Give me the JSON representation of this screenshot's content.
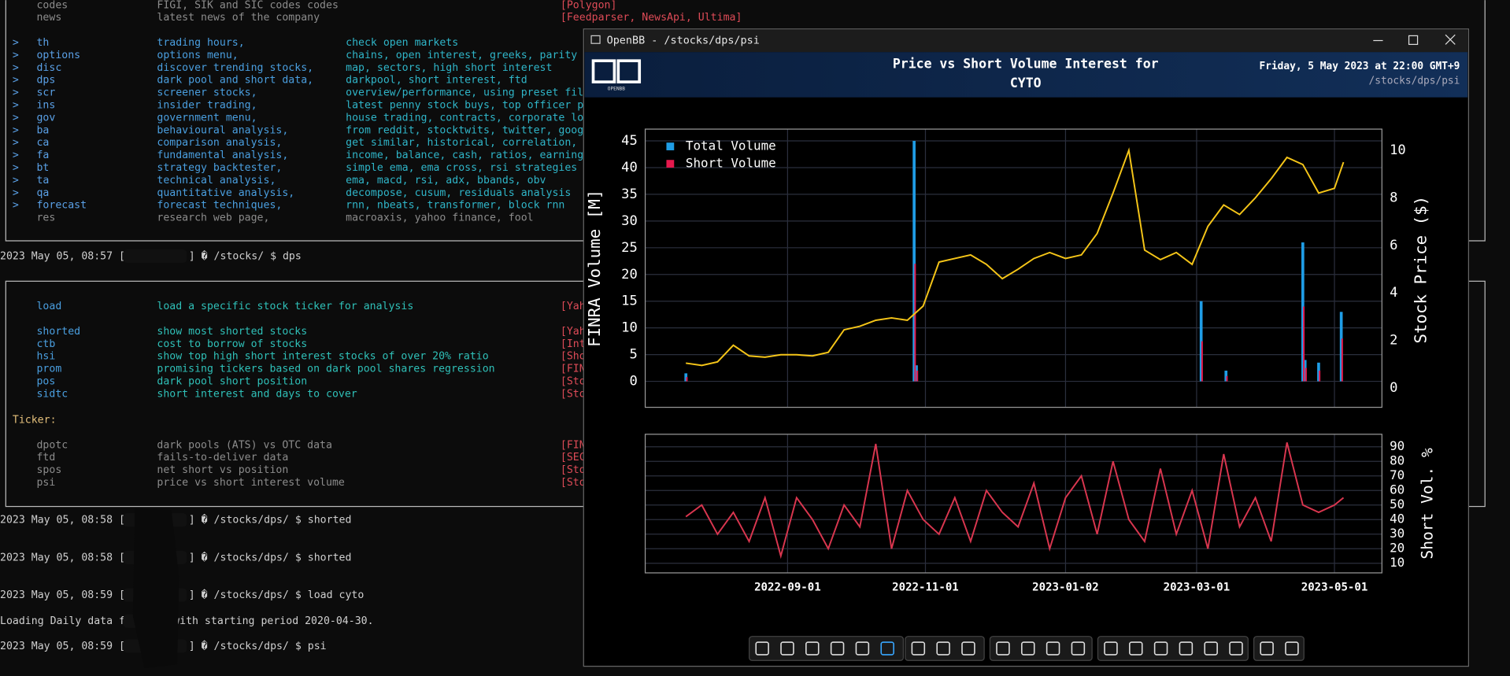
{
  "terminal": {
    "menu": [
      {
        "cmd": "codes",
        "desc": "FIGI, SIK and SIC codes codes",
        "source": "[Polygon]"
      },
      {
        "cmd": "news",
        "desc": "latest news of the company",
        "source": "[Feedparser, NewsApi, Ultima]"
      },
      {
        "prefix": ">",
        "cmd": "th",
        "desc": "trading hours,",
        "detail": "check open markets"
      },
      {
        "prefix": ">",
        "cmd": "options",
        "desc": "options menu,",
        "detail": "chains, open interest, greeks, parity"
      },
      {
        "prefix": ">",
        "cmd": "disc",
        "desc": "discover trending stocks,",
        "detail": "map, sectors, high short interest"
      },
      {
        "prefix": ">",
        "cmd": "dps",
        "desc": "dark pool and short data,",
        "detail": "darkpool, short interest, ftd"
      },
      {
        "prefix": ">",
        "cmd": "scr",
        "desc": "screener stocks,",
        "detail": "overview/performance, using preset fil"
      },
      {
        "prefix": ">",
        "cmd": "ins",
        "desc": "insider trading,",
        "detail": "latest penny stock buys, top officer p"
      },
      {
        "prefix": ">",
        "cmd": "gov",
        "desc": "government menu,",
        "detail": "house trading, contracts, corporate lo"
      },
      {
        "prefix": ">",
        "cmd": "ba",
        "desc": "behavioural analysis,",
        "detail": "from reddit, stocktwits, twitter, goog"
      },
      {
        "prefix": ">",
        "cmd": "ca",
        "desc": "comparison analysis,",
        "detail": "get similar, historical, correlation,"
      },
      {
        "prefix": ">",
        "cmd": "fa",
        "desc": "fundamental analysis,",
        "detail": "income, balance, cash, ratios, earning"
      },
      {
        "prefix": ">",
        "cmd": "bt",
        "desc": "strategy backtester,",
        "detail": "simple ema, ema cross, rsi strategies"
      },
      {
        "prefix": ">",
        "cmd": "ta",
        "desc": "technical analysis,",
        "detail": "ema, macd, rsi, adx, bbands, obv"
      },
      {
        "prefix": ">",
        "cmd": "qa",
        "desc": "quantitative analysis,",
        "detail": "decompose, cusum, residuals analysis"
      },
      {
        "prefix": ">",
        "cmd": "forecast",
        "desc": "forecast techniques,",
        "detail": "rnn, nbeats, transformer, block rnn"
      },
      {
        "cmd": "res",
        "desc": "research web page,",
        "detail": "macroaxis, yahoo finance, fool"
      }
    ],
    "dps_menu": {
      "commands": [
        {
          "cmd": "load",
          "desc": "load a specific stock ticker for analysis",
          "source": "[Yah"
        },
        {
          "cmd": "shorted",
          "desc": "show most shorted stocks",
          "source": "[Yah"
        },
        {
          "cmd": "ctb",
          "desc": "cost to borrow of stocks",
          "source": "[Int"
        },
        {
          "cmd": "hsi",
          "desc": "show top high short interest stocks of over 20% ratio",
          "source": "[Sho"
        },
        {
          "cmd": "prom",
          "desc": "promising tickers based on dark pool shares regression",
          "source": "[FIN"
        },
        {
          "cmd": "pos",
          "desc": "dark pool short position",
          "source": "[Sto"
        },
        {
          "cmd": "sidtc",
          "desc": "short interest and days to cover",
          "source": "[Sto"
        }
      ],
      "ticker_label": "Ticker:",
      "ticker_commands": [
        {
          "cmd": "dpotc",
          "desc": "dark pools (ATS) vs OTC data",
          "source": "[FIN"
        },
        {
          "cmd": "ftd",
          "desc": "fails-to-deliver data",
          "source": "[SEC"
        },
        {
          "cmd": "spos",
          "desc": "net short vs position",
          "source": "[Sto"
        },
        {
          "cmd": "psi",
          "desc": "price vs short interest volume",
          "source": "[Sto"
        }
      ]
    },
    "lines": [
      [
        "2023 May 05, 08:57 [",
        "] � /stocks/ $ dps"
      ],
      [
        "2023 May 05, 08:58 [",
        "] � /stocks/dps/ $ shorted"
      ],
      [
        "2023 May 05, 08:58 [",
        "] � /stocks/dps/ $ shorted"
      ],
      [
        "2023 May 05, 08:59 [",
        "] � /stocks/dps/ $ load cyto"
      ],
      [
        "Loading Daily data f",
        "with starting period 2020-04-30."
      ],
      [
        "2023 May 05, 08:59 [",
        "] � /stocks/dps/ $ psi"
      ]
    ]
  },
  "window": {
    "title": "OpenBB - /stocks/dps/psi",
    "logo_text": "OPENBB",
    "chart_title": [
      "Price vs Short Volume Interest for",
      "CYTO"
    ],
    "date": "Friday, 5 May 2023 at 22:00 GMT+9",
    "path": "/stocks/dps/psi",
    "charts": [
      {
        "type": "combo",
        "ylabel": "FINRA Volume [M]",
        "y2label": "Stock Price ($)",
        "xlim": [
          "2022-06-30",
          "2023-05-22"
        ],
        "xticks": [
          "2022-09-01",
          "2022-11-01",
          "2023-01-02",
          "2023-03-01",
          "2023-05-01"
        ],
        "ylim": [
          -4.86,
          47.2
        ],
        "yticks": [
          0,
          5,
          10,
          15,
          20,
          25,
          30,
          35,
          40,
          45
        ],
        "y2lim": [
          -0.81,
          10.89
        ],
        "y2ticks": [
          0,
          2,
          4,
          6,
          8,
          10
        ],
        "grid": true,
        "legend": "upper left",
        "series": [
          {
            "name": "Total Volume",
            "type": "bar",
            "color": "#1f9de6",
            "x": [
              "2022-07-18",
              "2022-10-27",
              "2022-10-28",
              "2023-03-03",
              "2023-03-14",
              "2023-04-17",
              "2023-04-18",
              "2023-04-24",
              "2023-05-04"
            ],
            "values": [
              1.5,
              45,
              3,
              15,
              2,
              26,
              4,
              3.5,
              13
            ]
          },
          {
            "name": "Short Volume",
            "type": "bar",
            "color": "#e5194d",
            "x": [
              "2022-07-18",
              "2022-10-27",
              "2022-10-28",
              "2023-03-03",
              "2023-03-14",
              "2023-04-17",
              "2023-04-18",
              "2023-04-24",
              "2023-05-04"
            ],
            "values": [
              0.8,
              22,
              2,
              7.5,
              1,
              14,
              2.5,
              2,
              8
            ]
          },
          {
            "type": "line",
            "axis": "y2",
            "color": "#f5c518",
            "x": [
              "2022-07-18",
              "2022-07-25",
              "2022-08-01",
              "2022-08-08",
              "2022-08-15",
              "2022-08-22",
              "2022-08-29",
              "2022-09-05",
              "2022-09-12",
              "2022-09-19",
              "2022-09-26",
              "2022-10-03",
              "2022-10-10",
              "2022-10-17",
              "2022-10-24",
              "2022-10-31",
              "2022-11-07",
              "2022-11-14",
              "2022-11-21",
              "2022-11-28",
              "2022-12-05",
              "2022-12-12",
              "2022-12-19",
              "2022-12-26",
              "2023-01-02",
              "2023-01-09",
              "2023-01-16",
              "2023-01-23",
              "2023-01-30",
              "2023-02-06",
              "2023-02-13",
              "2023-02-20",
              "2023-02-27",
              "2023-03-06",
              "2023-03-13",
              "2023-03-20",
              "2023-03-27",
              "2023-04-03",
              "2023-04-10",
              "2023-04-17",
              "2023-04-24",
              "2023-05-01",
              "2023-05-05"
            ],
            "values": [
              1.05,
              0.95,
              1.1,
              1.8,
              1.35,
              1.3,
              1.4,
              1.4,
              1.35,
              1.5,
              2.45,
              2.6,
              2.85,
              2.95,
              2.85,
              3.45,
              5.3,
              5.45,
              5.6,
              5.2,
              4.6,
              5.0,
              5.45,
              5.7,
              5.45,
              5.6,
              6.5,
              8.2,
              10.0,
              5.8,
              5.4,
              5.7,
              5.2,
              6.8,
              7.7,
              7.3,
              8.0,
              8.8,
              9.7,
              9.4,
              8.2,
              8.4,
              9.5
            ]
          }
        ]
      },
      {
        "type": "line",
        "ylabel": "Short Vol. %",
        "xlim": [
          "2022-06-30",
          "2023-05-22"
        ],
        "xticks": [
          "2022-09-01",
          "2022-11-01",
          "2023-01-02",
          "2023-03-01",
          "2023-05-01"
        ],
        "ylim": [
          3.4,
          98.6
        ],
        "yticks": [
          10,
          20,
          30,
          40,
          50,
          60,
          70,
          80,
          90
        ],
        "grid": true,
        "series": [
          {
            "type": "line",
            "color": "#d9364f",
            "x": [
              "2022-07-18",
              "2022-07-25",
              "2022-08-01",
              "2022-08-08",
              "2022-08-15",
              "2022-08-22",
              "2022-08-29",
              "2022-09-05",
              "2022-09-12",
              "2022-09-19",
              "2022-09-26",
              "2022-10-03",
              "2022-10-10",
              "2022-10-17",
              "2022-10-24",
              "2022-10-31",
              "2022-11-07",
              "2022-11-14",
              "2022-11-21",
              "2022-11-28",
              "2022-12-05",
              "2022-12-12",
              "2022-12-19",
              "2022-12-26",
              "2023-01-02",
              "2023-01-09",
              "2023-01-16",
              "2023-01-23",
              "2023-01-30",
              "2023-02-06",
              "2023-02-13",
              "2023-02-20",
              "2023-02-27",
              "2023-03-06",
              "2023-03-13",
              "2023-03-20",
              "2023-03-27",
              "2023-04-03",
              "2023-04-10",
              "2023-04-17",
              "2023-04-24",
              "2023-05-01",
              "2023-05-05"
            ],
            "values": [
              42,
              50,
              30,
              45,
              25,
              55,
              15,
              55,
              40,
              20,
              50,
              35,
              92,
              20,
              60,
              40,
              30,
              55,
              25,
              60,
              45,
              35,
              65,
              20,
              55,
              70,
              30,
              80,
              40,
              25,
              75,
              30,
              60,
              20,
              85,
              35,
              55,
              25,
              93,
              50,
              45,
              50,
              55
            ]
          }
        ]
      }
    ]
  }
}
